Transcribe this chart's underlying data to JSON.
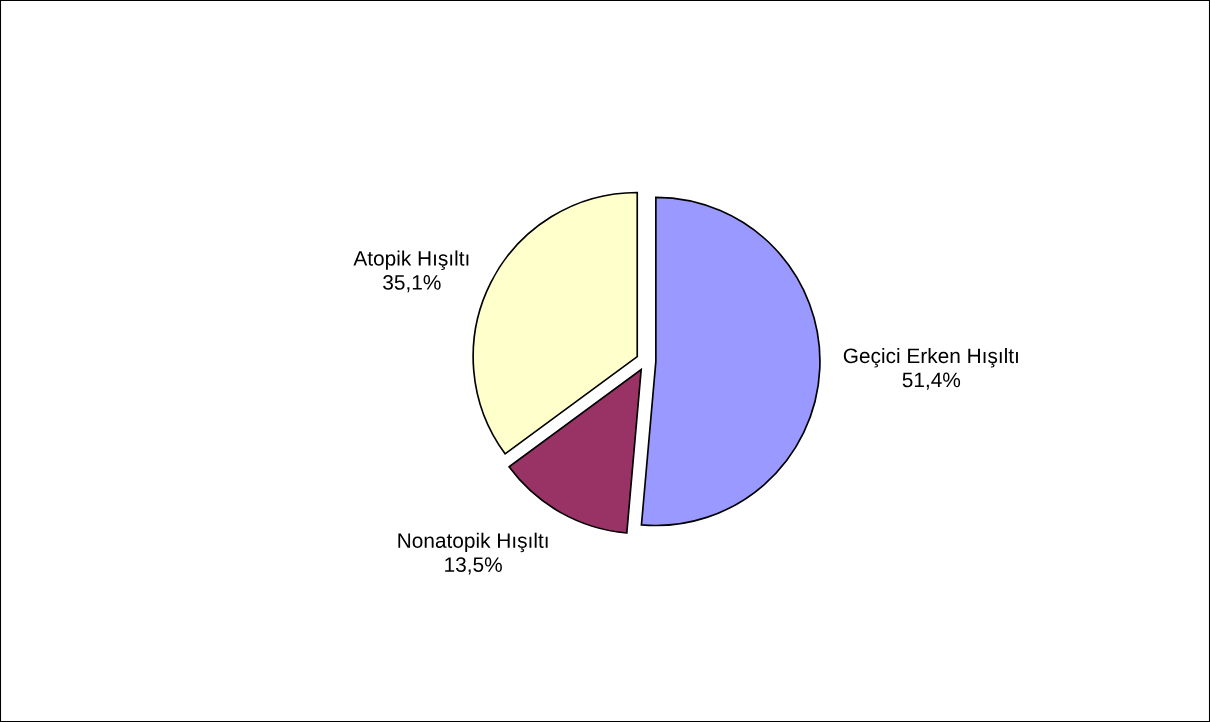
{
  "chart_data": {
    "type": "pie",
    "categories": [
      "Geçici Erken Hışıltı",
      "Nonatopik Hışıltı",
      "Atopik Hışıltı"
    ],
    "values": [
      51.4,
      13.5,
      35.1
    ],
    "value_labels": [
      "51,4%",
      "13,5%",
      "35,1%"
    ],
    "colors": [
      "#9999ff",
      "#993366",
      "#ffffcc"
    ],
    "legend": false
  }
}
